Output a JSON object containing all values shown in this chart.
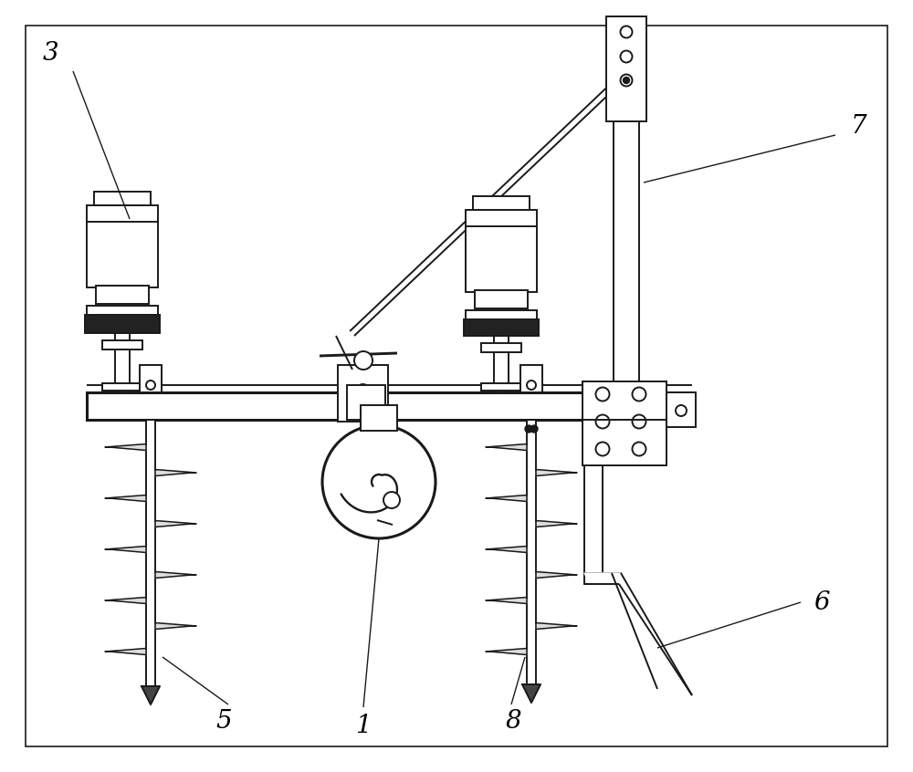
{
  "bg_color": "#ffffff",
  "line_color": "#1a1a1a",
  "lw": 1.4,
  "tlw": 2.2,
  "fs": 20,
  "figsize": [
    10.0,
    8.46
  ],
  "dpi": 100
}
